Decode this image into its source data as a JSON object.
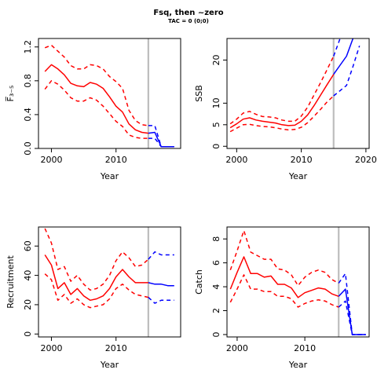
{
  "title": "Fsq, then ~zero",
  "subtitle": "TAC = 0 (0;0)",
  "chart_data": [
    {
      "type": "line",
      "panel": "F",
      "xlabel": "Year",
      "ylabel": "F̅₃₋₅",
      "xlim": [
        1998,
        2020
      ],
      "ylim": [
        0,
        1.3
      ],
      "xticks": [
        2000,
        2010
      ],
      "yticks": [
        0.0,
        0.4,
        0.8,
        1.2
      ],
      "ytick_labels": [
        "0.0",
        "0.4",
        "0.8",
        "1.2"
      ],
      "vline": 2015,
      "grid": false,
      "legend": "none",
      "series": [
        {
          "role": "median",
          "color": "#ff0000",
          "dash": false,
          "x": [
            1999,
            2000,
            2001,
            2002,
            2003,
            2004,
            2005,
            2006,
            2007,
            2008,
            2009,
            2010,
            2011,
            2012,
            2013,
            2014,
            2015
          ],
          "values": [
            0.91,
            0.99,
            0.94,
            0.87,
            0.77,
            0.74,
            0.73,
            0.78,
            0.76,
            0.71,
            0.61,
            0.5,
            0.43,
            0.29,
            0.22,
            0.19,
            0.18
          ]
        },
        {
          "role": "upper",
          "color": "#ff0000",
          "dash": true,
          "x": [
            1999,
            2000,
            2001,
            2002,
            2003,
            2004,
            2005,
            2006,
            2007,
            2008,
            2009,
            2010,
            2011,
            2012,
            2013,
            2014,
            2015
          ],
          "values": [
            1.19,
            1.22,
            1.15,
            1.08,
            0.98,
            0.94,
            0.94,
            0.99,
            0.98,
            0.94,
            0.85,
            0.79,
            0.71,
            0.45,
            0.33,
            0.28,
            0.27
          ]
        },
        {
          "role": "lower",
          "color": "#ff0000",
          "dash": true,
          "x": [
            1999,
            2000,
            2001,
            2002,
            2003,
            2004,
            2005,
            2006,
            2007,
            2008,
            2009,
            2010,
            2011,
            2012,
            2013,
            2014,
            2015
          ],
          "values": [
            0.7,
            0.8,
            0.76,
            0.69,
            0.6,
            0.56,
            0.56,
            0.6,
            0.57,
            0.5,
            0.41,
            0.32,
            0.26,
            0.16,
            0.13,
            0.12,
            0.12
          ]
        },
        {
          "role": "median",
          "color": "#0000ff",
          "dash": false,
          "x": [
            2015,
            2016,
            2017,
            2018,
            2019
          ],
          "values": [
            0.18,
            0.19,
            0.02,
            0.02,
            0.02
          ]
        },
        {
          "role": "upper",
          "color": "#0000ff",
          "dash": true,
          "x": [
            2015,
            2016,
            2017,
            2018,
            2019
          ],
          "values": [
            0.27,
            0.27,
            0.02,
            0.02,
            0.02
          ]
        },
        {
          "role": "lower",
          "color": "#0000ff",
          "dash": true,
          "x": [
            2015,
            2016,
            2017,
            2018,
            2019
          ],
          "values": [
            0.12,
            0.12,
            0.02,
            0.02,
            0.02
          ]
        }
      ]
    },
    {
      "type": "line",
      "panel": "SSB",
      "xlabel": "Year",
      "ylabel": "SSB",
      "xlim": [
        1998.5,
        2020.5
      ],
      "ylim": [
        -0.5,
        25
      ],
      "xticks": [
        2000,
        2010,
        2020
      ],
      "yticks": [
        0,
        5,
        10,
        20
      ],
      "ytick_labels": [
        "0",
        "5",
        "10",
        "20"
      ],
      "vline": 2015,
      "grid": false,
      "legend": "none",
      "series": [
        {
          "role": "median",
          "color": "#ff0000",
          "dash": false,
          "x": [
            1999,
            2000,
            2001,
            2002,
            2003,
            2004,
            2005,
            2006,
            2007,
            2008,
            2009,
            2010,
            2011,
            2012,
            2013,
            2014,
            2015
          ],
          "values": [
            4.3,
            5.2,
            6.3,
            6.6,
            6.1,
            5.8,
            5.6,
            5.4,
            5.0,
            4.8,
            4.9,
            5.8,
            7.3,
            9.5,
            11.9,
            14.3,
            16.7
          ]
        },
        {
          "role": "upper",
          "color": "#ff0000",
          "dash": true,
          "x": [
            1999,
            2000,
            2001,
            2002,
            2003,
            2004,
            2005,
            2006,
            2007,
            2008,
            2009,
            2010,
            2011,
            2012,
            2013,
            2014,
            2015
          ],
          "values": [
            5.2,
            6.3,
            7.7,
            8.1,
            7.4,
            6.9,
            6.8,
            6.6,
            6.1,
            5.8,
            5.8,
            7.0,
            9.1,
            12.0,
            14.8,
            17.8,
            20.9
          ]
        },
        {
          "role": "lower",
          "color": "#ff0000",
          "dash": true,
          "x": [
            1999,
            2000,
            2001,
            2002,
            2003,
            2004,
            2005,
            2006,
            2007,
            2008,
            2009,
            2010,
            2011,
            2012,
            2013,
            2014,
            2015
          ],
          "values": [
            3.4,
            4.2,
            5.0,
            5.1,
            4.8,
            4.6,
            4.5,
            4.3,
            4.0,
            3.8,
            3.9,
            4.4,
            5.5,
            7.0,
            8.6,
            10.3,
            11.7
          ]
        },
        {
          "role": "median",
          "color": "#0000ff",
          "dash": false,
          "x": [
            2015,
            2016,
            2017,
            2018
          ],
          "values": [
            16.7,
            18.8,
            20.9,
            25.0
          ]
        },
        {
          "role": "upper",
          "color": "#0000ff",
          "dash": true,
          "x": [
            2015,
            2016
          ],
          "values": [
            20.9,
            25.0
          ]
        },
        {
          "role": "lower",
          "color": "#0000ff",
          "dash": true,
          "x": [
            2015,
            2016,
            2017,
            2018,
            2019
          ],
          "values": [
            11.7,
            12.9,
            14.1,
            18.5,
            23.3
          ]
        }
      ]
    },
    {
      "type": "line",
      "panel": "Recruitment",
      "xlabel": "Year",
      "ylabel": "Recruitment",
      "xlim": [
        1998,
        2020
      ],
      "ylim": [
        -2,
        73
      ],
      "xticks": [
        2000,
        2010
      ],
      "yticks": [
        0,
        20,
        40,
        60
      ],
      "ytick_labels": [
        "0",
        "20",
        "40",
        "60"
      ],
      "vline": 2015,
      "grid": false,
      "legend": "none",
      "series": [
        {
          "role": "median",
          "color": "#ff0000",
          "dash": false,
          "x": [
            1999,
            2000,
            2001,
            2002,
            2003,
            2004,
            2005,
            2006,
            2007,
            2008,
            2009,
            2010,
            2011,
            2012,
            2013,
            2014,
            2015
          ],
          "values": [
            54,
            47,
            31,
            35,
            27,
            31,
            26,
            23,
            24,
            26,
            31,
            39,
            44,
            39,
            35,
            35,
            35
          ]
        },
        {
          "role": "upper",
          "color": "#ff0000",
          "dash": true,
          "x": [
            1999,
            2000,
            2001,
            2002,
            2003,
            2004,
            2005,
            2006,
            2007,
            2008,
            2009,
            2010,
            2011,
            2012,
            2013,
            2014,
            2015
          ],
          "values": [
            72,
            62,
            44,
            46,
            36,
            40,
            34,
            30,
            31,
            34,
            40,
            50,
            56,
            52,
            46,
            47,
            51
          ]
        },
        {
          "role": "lower",
          "color": "#ff0000",
          "dash": true,
          "x": [
            1999,
            2000,
            2001,
            2002,
            2003,
            2004,
            2005,
            2006,
            2007,
            2008,
            2009,
            2010,
            2011,
            2012,
            2013,
            2014,
            2015
          ],
          "values": [
            41,
            37,
            23,
            27,
            21,
            24,
            20,
            18,
            19,
            20,
            24,
            31,
            34,
            30,
            27,
            26,
            25
          ]
        },
        {
          "role": "median",
          "color": "#0000ff",
          "dash": false,
          "x": [
            2015,
            2016,
            2017,
            2018,
            2019
          ],
          "values": [
            35,
            34,
            34,
            33,
            33
          ]
        },
        {
          "role": "upper",
          "color": "#0000ff",
          "dash": true,
          "x": [
            2015,
            2016,
            2017,
            2018,
            2019
          ],
          "values": [
            51,
            56,
            54,
            54,
            54
          ]
        },
        {
          "role": "lower",
          "color": "#0000ff",
          "dash": true,
          "x": [
            2015,
            2016,
            2017,
            2018,
            2019
          ],
          "values": [
            25,
            21,
            23,
            23,
            23
          ]
        }
      ]
    },
    {
      "type": "line",
      "panel": "Catch",
      "xlabel": "Year",
      "ylabel": "Catch",
      "xlim": [
        1998.5,
        2019.5
      ],
      "ylim": [
        -0.2,
        9.0
      ],
      "xticks": [
        2000,
        2010
      ],
      "yticks": [
        0,
        2,
        4,
        6,
        8
      ],
      "ytick_labels": [
        "0",
        "2",
        "4",
        "6",
        "8"
      ],
      "vline": 2015,
      "grid": false,
      "legend": "none",
      "series": [
        {
          "role": "median",
          "color": "#ff0000",
          "dash": false,
          "x": [
            1999,
            2000,
            2001,
            2002,
            2003,
            2004,
            2005,
            2006,
            2007,
            2008,
            2009,
            2010,
            2011,
            2012,
            2013,
            2014,
            2015
          ],
          "values": [
            3.8,
            5.2,
            6.5,
            5.1,
            5.1,
            4.8,
            4.9,
            4.2,
            4.2,
            3.9,
            3.1,
            3.5,
            3.7,
            3.9,
            3.8,
            3.4,
            3.2
          ]
        },
        {
          "role": "upper",
          "color": "#ff0000",
          "dash": true,
          "x": [
            1999,
            2000,
            2001,
            2002,
            2003,
            2004,
            2005,
            2006,
            2007,
            2008,
            2009,
            2010,
            2011,
            2012,
            2013,
            2014,
            2015
          ],
          "values": [
            5.4,
            7.0,
            8.7,
            6.9,
            6.6,
            6.3,
            6.3,
            5.5,
            5.4,
            5.0,
            4.1,
            4.8,
            5.2,
            5.4,
            5.2,
            4.6,
            4.3
          ]
        },
        {
          "role": "lower",
          "color": "#ff0000",
          "dash": true,
          "x": [
            1999,
            2000,
            2001,
            2002,
            2003,
            2004,
            2005,
            2006,
            2007,
            2008,
            2009,
            2010,
            2011,
            2012,
            2013,
            2014,
            2015
          ],
          "values": [
            2.7,
            3.8,
            5.0,
            3.8,
            3.8,
            3.6,
            3.6,
            3.2,
            3.2,
            3.0,
            2.3,
            2.6,
            2.8,
            2.9,
            2.8,
            2.5,
            2.3
          ]
        },
        {
          "role": "median",
          "color": "#0000ff",
          "dash": false,
          "x": [
            2015,
            2016,
            2017,
            2018,
            2019
          ],
          "values": [
            3.2,
            3.8,
            0.0,
            0.0,
            0.0
          ]
        },
        {
          "role": "upper",
          "color": "#0000ff",
          "dash": true,
          "x": [
            2015,
            2016,
            2017,
            2018,
            2019
          ],
          "values": [
            4.3,
            5.1,
            0.0,
            0.0,
            0.0
          ]
        },
        {
          "role": "lower",
          "color": "#0000ff",
          "dash": true,
          "x": [
            2015,
            2016,
            2017,
            2018,
            2019
          ],
          "values": [
            2.3,
            2.8,
            0.0,
            0.0,
            0.0
          ]
        }
      ]
    }
  ]
}
